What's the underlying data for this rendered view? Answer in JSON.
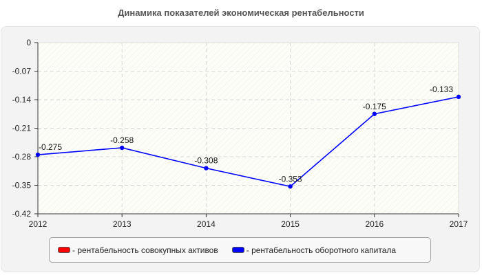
{
  "title": "Динамика показателей экономическая рентабельности",
  "legend": [
    {
      "label": "- рентабельность совокупных активов",
      "color": "#ff0000"
    },
    {
      "label": "- рентабельность оборотного капитала",
      "color": "#0000ff"
    }
  ],
  "chart_data": {
    "type": "line",
    "title": "Динамика показателей экономическая рентабельности",
    "xlabel": "",
    "ylabel": "",
    "categories": [
      "2012",
      "2013",
      "2014",
      "2015",
      "2016",
      "2017"
    ],
    "series": [
      {
        "name": "рентабельность совокупных активов",
        "color": "#ff0000",
        "values": []
      },
      {
        "name": "рентабельность оборотного капитала",
        "color": "#0000ff",
        "values": [
          -0.275,
          -0.258,
          -0.308,
          -0.353,
          -0.175,
          -0.133
        ]
      }
    ],
    "ylim": [
      -0.42,
      0
    ],
    "yticks": [
      "0",
      "-0.07",
      "-0.14",
      "-0.21",
      "-0.28",
      "-0.35",
      "-0.42"
    ],
    "data_labels": [
      "-0.275",
      "-0.258",
      "-0.308",
      "-0.353",
      "-0.175",
      "-0.133"
    ],
    "grid": true,
    "legend_position": "bottom"
  }
}
